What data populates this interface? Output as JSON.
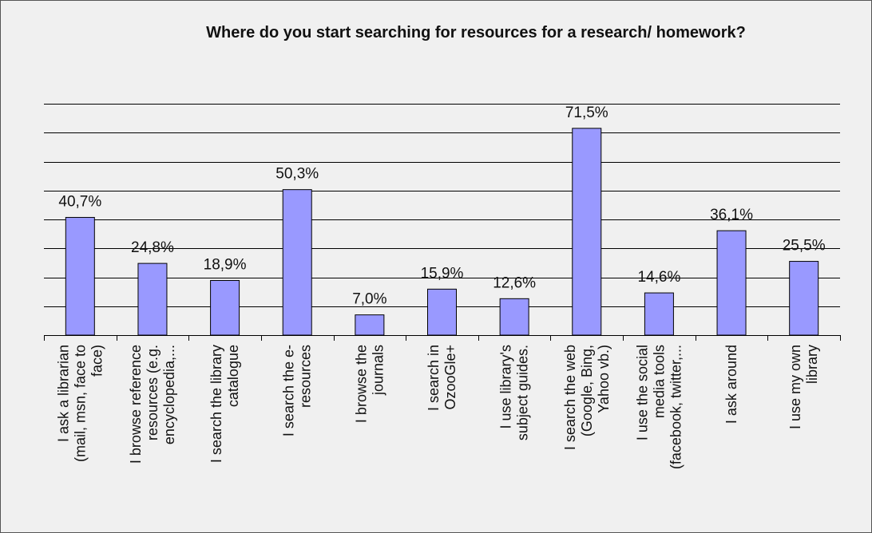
{
  "chart_data": {
    "type": "bar",
    "title": "Where do you start searching for resources for a research/ homework?",
    "xlabel": "",
    "ylabel": "",
    "ylim": [
      0,
      80
    ],
    "grid": true,
    "categories": [
      [
        "I ask a librarian",
        "(mail, msn, face to",
        "face)"
      ],
      [
        "I browse reference",
        "resources (e.g.",
        "encyclopedia,..."
      ],
      [
        "I search the library",
        "catalogue"
      ],
      [
        "I search the e-",
        "resources"
      ],
      [
        "I browse the",
        "journals"
      ],
      [
        "I search in",
        "OzooGle+"
      ],
      [
        "I use library's",
        "subject guides."
      ],
      [
        "I search the web",
        "(Google, Bing,",
        "Yahoo vb.)"
      ],
      [
        "I use the social",
        "media tools",
        "(facebook, twitter,..."
      ],
      [
        "I ask around"
      ],
      [
        "I use my own",
        "library"
      ]
    ],
    "values": [
      40.7,
      24.8,
      18.9,
      50.3,
      7.0,
      15.9,
      12.6,
      71.5,
      14.6,
      36.1,
      25.5
    ],
    "data_labels": [
      "40,7%",
      "24,8%",
      "18,9%",
      "50,3%",
      "7,0%",
      "15,9%",
      "12,6%",
      "71,5%",
      "14,6%",
      "36,1%",
      "25,5%"
    ],
    "colors": {
      "bar": "#9999ff",
      "bar_stroke": "#000000",
      "grid": "#000000",
      "background": "#f0f0f0"
    }
  }
}
